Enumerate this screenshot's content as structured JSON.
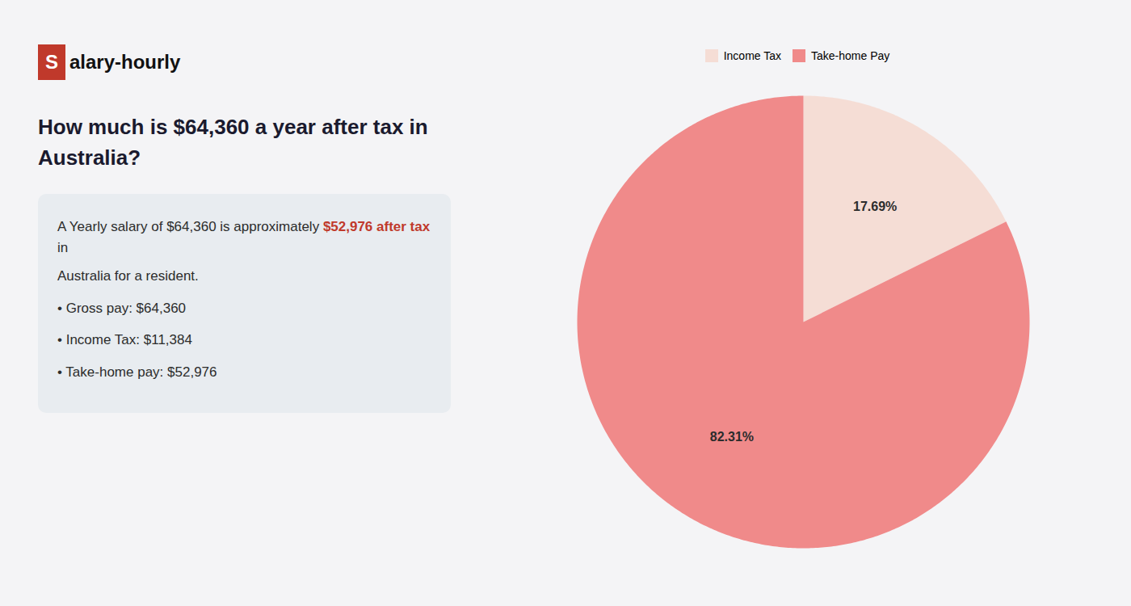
{
  "chart_data": {
    "type": "pie",
    "title": "How much is $64,360 a year after tax in Australia?",
    "categories": [
      "Income Tax",
      "Take-home Pay"
    ],
    "values": [
      17.69,
      82.31
    ],
    "value_labels": [
      "17.69%",
      "82.31%"
    ],
    "data_labels": true,
    "colors": [
      "#f5ddd5",
      "#f08a8a"
    ],
    "legend": "top",
    "annotations": [
      [
        {
          "text": "S",
          "color": "#c0392b"
        },
        {
          "text": "alary-hourly"
        }
      ],
      [
        {
          "text": "A Yearly salary of $64,360 is approximately "
        },
        {
          "text": "$52,976 after tax",
          "color": "#c0392b"
        },
        {
          "text": " in"
        }
      ],
      [
        {
          "text": "Australia for a resident."
        }
      ],
      [
        {
          "text": "• Gross pay: $64,360"
        }
      ],
      [
        {
          "text": "• Income Tax: $11,384"
        }
      ],
      [
        {
          "text": "• Take-home pay: $52,976"
        }
      ]
    ]
  }
}
